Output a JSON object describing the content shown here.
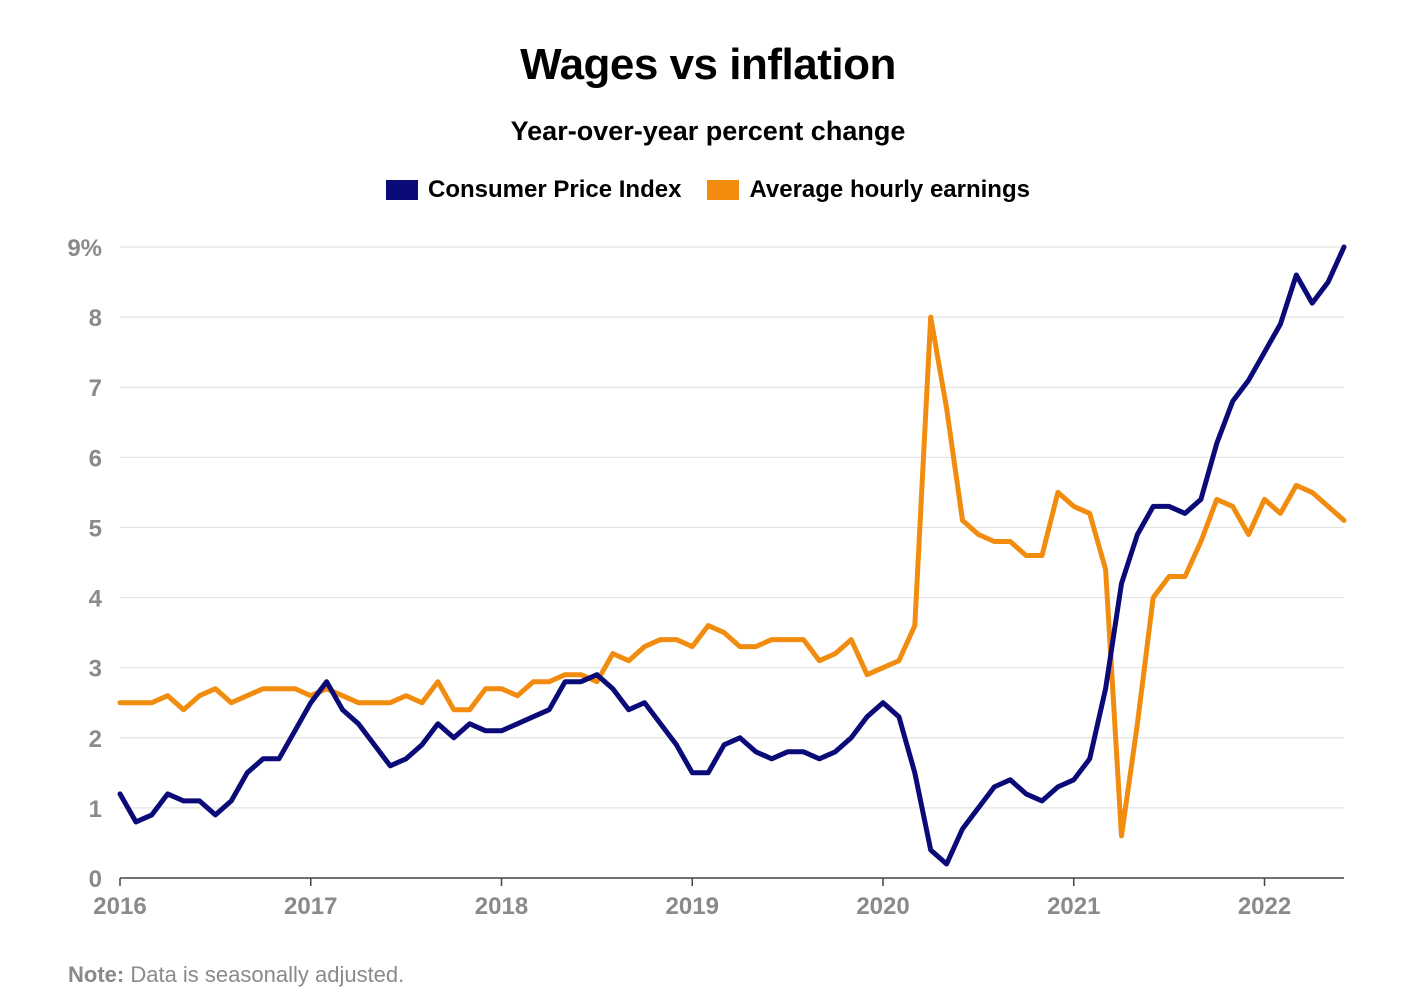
{
  "chart_data": {
    "type": "line",
    "title": "Wages vs inflation",
    "subtitle": "Year-over-year percent change",
    "y_ticks": [
      "0",
      "1",
      "2",
      "3",
      "4",
      "5",
      "6",
      "7",
      "8",
      "9%"
    ],
    "x_ticks": [
      "2016",
      "2017",
      "2018",
      "2019",
      "2020",
      "2021",
      "2022"
    ],
    "ylim": [
      0,
      9
    ],
    "xlim": [
      2016.0,
      2022.4167
    ],
    "grid": true,
    "legend_position": "top-center",
    "series": [
      {
        "name": "Consumer Price Index",
        "color": "#0a0a78",
        "values": [
          1.2,
          0.8,
          0.9,
          1.2,
          1.1,
          1.1,
          0.9,
          1.1,
          1.5,
          1.7,
          1.7,
          2.1,
          2.5,
          2.8,
          2.4,
          2.2,
          1.9,
          1.6,
          1.7,
          1.9,
          2.2,
          2.0,
          2.2,
          2.1,
          2.1,
          2.2,
          2.3,
          2.4,
          2.8,
          2.8,
          2.9,
          2.7,
          2.4,
          2.5,
          2.2,
          1.9,
          1.5,
          1.5,
          1.9,
          2.0,
          1.8,
          1.7,
          1.8,
          1.8,
          1.7,
          1.8,
          2.0,
          2.3,
          2.5,
          2.3,
          1.5,
          0.4,
          0.2,
          0.7,
          1.0,
          1.3,
          1.4,
          1.2,
          1.1,
          1.3,
          1.4,
          1.7,
          2.7,
          4.2,
          4.9,
          5.3,
          5.3,
          5.2,
          5.4,
          6.2,
          6.8,
          7.1,
          7.5,
          7.9,
          8.6,
          8.2,
          8.5,
          9.0
        ]
      },
      {
        "name": "Average hourly earnings",
        "color": "#f28c0f",
        "values": [
          2.5,
          2.5,
          2.5,
          2.6,
          2.4,
          2.6,
          2.7,
          2.5,
          2.6,
          2.7,
          2.7,
          2.7,
          2.6,
          2.7,
          2.6,
          2.5,
          2.5,
          2.5,
          2.6,
          2.5,
          2.8,
          2.4,
          2.4,
          2.7,
          2.7,
          2.6,
          2.8,
          2.8,
          2.9,
          2.9,
          2.8,
          3.2,
          3.1,
          3.3,
          3.4,
          3.4,
          3.3,
          3.6,
          3.5,
          3.3,
          3.3,
          3.4,
          3.4,
          3.4,
          3.1,
          3.2,
          3.4,
          2.9,
          3.0,
          3.1,
          3.6,
          8.0,
          6.7,
          5.1,
          4.9,
          4.8,
          4.8,
          4.6,
          4.6,
          5.5,
          5.3,
          5.2,
          4.4,
          0.6,
          2.2,
          4.0,
          4.3,
          4.3,
          4.8,
          5.4,
          5.3,
          4.9,
          5.4,
          5.2,
          5.6,
          5.5,
          5.3,
          5.1
        ]
      }
    ]
  },
  "note": {
    "label": "Note:",
    "text": " Data is seasonally adjusted."
  }
}
